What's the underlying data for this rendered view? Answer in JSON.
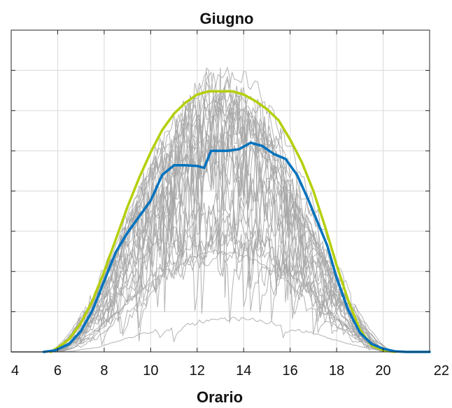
{
  "chart_data": {
    "type": "line",
    "title": "Giugno",
    "xlabel": "Orario",
    "ylabel": "",
    "xlim": [
      4,
      22
    ],
    "ylim": [
      0,
      1
    ],
    "xticks": [
      4,
      6,
      8,
      10,
      12,
      14,
      16,
      18,
      20,
      22
    ],
    "yticks": [
      0,
      0.125,
      0.25,
      0.375,
      0.5,
      0.625,
      0.75,
      0.875,
      1
    ],
    "grid": true,
    "legend": "none",
    "colors": {
      "daily": "#a6a6a6",
      "envelope": "#b5cf0c",
      "mean": "#0072bd"
    },
    "series": [
      {
        "role": "daily-profiles",
        "color": "#a6a6a6",
        "count": 30,
        "x_start": 5.5,
        "x_end": 21,
        "peak_max": 0.93,
        "peak_min": 0.1
      },
      {
        "role": "envelope",
        "color": "#b5cf0c",
        "x": [
          5.7,
          6,
          6.5,
          7,
          7.5,
          8,
          8.5,
          9,
          9.5,
          10,
          10.5,
          11,
          11.5,
          12,
          12.5,
          13,
          13.5,
          14,
          14.5,
          15,
          15.5,
          16,
          16.5,
          17,
          17.5,
          18,
          18.5,
          19,
          19.5,
          20,
          20.5
        ],
        "y": [
          0,
          0.013,
          0.04,
          0.09,
          0.16,
          0.25,
          0.35,
          0.45,
          0.54,
          0.62,
          0.69,
          0.74,
          0.775,
          0.8,
          0.81,
          0.81,
          0.81,
          0.8,
          0.78,
          0.755,
          0.72,
          0.66,
          0.59,
          0.5,
          0.39,
          0.27,
          0.16,
          0.07,
          0.02,
          0.005,
          0
        ]
      },
      {
        "role": "mean",
        "color": "#0072bd",
        "x": [
          5.4,
          5.9,
          6.5,
          7,
          7.5,
          8,
          8.5,
          9,
          9.5,
          10,
          10.5,
          11,
          11.5,
          12,
          12.3,
          12.6,
          13.3,
          13.8,
          14.3,
          14.8,
          15.3,
          15.8,
          16.3,
          16.8,
          17.2,
          17.6,
          18,
          18.5,
          19,
          19.5,
          20,
          20.5,
          21,
          22
        ],
        "y": [
          0,
          0.005,
          0.025,
          0.065,
          0.13,
          0.22,
          0.31,
          0.37,
          0.42,
          0.47,
          0.55,
          0.58,
          0.58,
          0.578,
          0.572,
          0.625,
          0.625,
          0.63,
          0.65,
          0.64,
          0.615,
          0.6,
          0.55,
          0.47,
          0.4,
          0.33,
          0.23,
          0.13,
          0.06,
          0.025,
          0.01,
          0.002,
          0,
          0
        ]
      }
    ]
  }
}
